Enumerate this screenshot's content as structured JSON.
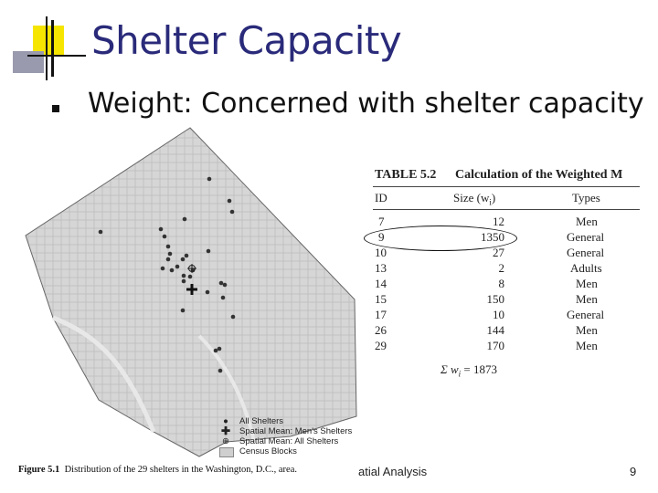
{
  "slide": {
    "title": "Shelter Capacity",
    "bullet": "Weight: Concerned with shelter capacity",
    "footer_text": "atial Analysis",
    "page_number": "9"
  },
  "figure": {
    "caption_label": "Figure 5.1",
    "caption_text": "Distribution of the 29 shelters in the Washington, D.C., area.",
    "legend": [
      {
        "icon": "dot-icon",
        "label": "All Shelters"
      },
      {
        "icon": "cross-icon",
        "label": "Spatial Mean: Men's Shelters"
      },
      {
        "icon": "circle-plus-icon",
        "label": "Spatial Mean: All Shelters"
      },
      {
        "icon": "gray-box-icon",
        "label": "Census Blocks"
      }
    ]
  },
  "table": {
    "caption_label": "TABLE 5.2",
    "caption_text": "Calculation of the Weighted M",
    "headers": {
      "id": "ID",
      "size": "Size (w",
      "size_sub": "i",
      "size_close": ")",
      "types": "Types"
    },
    "rows": [
      {
        "id": "7",
        "size": "12",
        "type": "Men"
      },
      {
        "id": "9",
        "size": "1350",
        "type": "General"
      },
      {
        "id": "10",
        "size": "27",
        "type": "General"
      },
      {
        "id": "13",
        "size": "2",
        "type": "Adults"
      },
      {
        "id": "14",
        "size": "8",
        "type": "Men"
      },
      {
        "id": "15",
        "size": "150",
        "type": "Men"
      },
      {
        "id": "17",
        "size": "10",
        "type": "General"
      },
      {
        "id": "26",
        "size": "144",
        "type": "Men"
      },
      {
        "id": "29",
        "size": "170",
        "type": "Men"
      }
    ],
    "sum_label": "Σ w",
    "sum_sub": "i",
    "sum_value": "= 1873"
  },
  "colors": {
    "title": "#2a2a7a",
    "deco_yellow": "#f5e500",
    "deco_gray": "#9a9aae",
    "map_fill": "#d4d4d4"
  }
}
